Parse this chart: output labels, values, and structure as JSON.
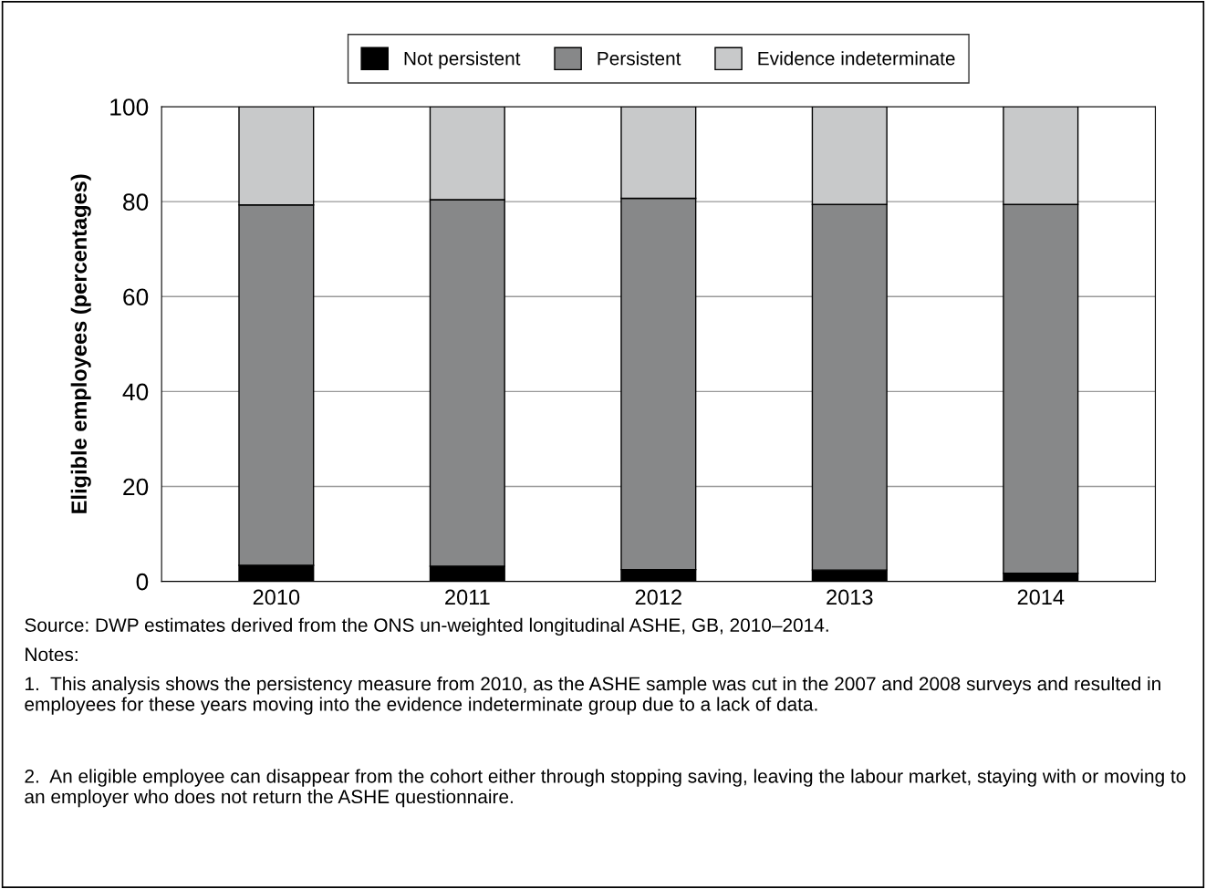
{
  "chart_data": {
    "type": "bar",
    "stacked": true,
    "ylabel": "Eligible employees (percentages)",
    "categories": [
      "2010",
      "2011",
      "2012",
      "2013",
      "2014"
    ],
    "series": [
      {
        "name": "Not persistent",
        "color": "#000000",
        "values": [
          3.4,
          3.2,
          2.5,
          2.4,
          1.7
        ]
      },
      {
        "name": "Persistent",
        "color": "#878889",
        "values": [
          75.9,
          77.2,
          78.2,
          77.0,
          77.7
        ]
      },
      {
        "name": "Evidence indeterminate",
        "color": "#c8c9ca",
        "values": [
          20.7,
          19.6,
          19.3,
          20.6,
          20.6
        ]
      }
    ],
    "ylim": [
      0,
      100
    ],
    "yticks": [
      0,
      20,
      40,
      60,
      80,
      100
    ],
    "grid": "y",
    "legend": "top",
    "annotations": [
      "Source: DWP estimates derived from the ONS un-weighted longitudinal ASHE, GB, 2010–2014.",
      "Notes:",
      "1.  This analysis shows the persistency measure from 2010, as the ASHE sample was cut in the 2007 and 2008 surveys and resulted in employees for these years moving into the evidence indeterminate group due to a lack of data.",
      "2.  An eligible employee can disappear from the cohort either through stopping saving, leaving the labour market, staying with or moving to an employer who does not return the ASHE questionnaire."
    ]
  }
}
